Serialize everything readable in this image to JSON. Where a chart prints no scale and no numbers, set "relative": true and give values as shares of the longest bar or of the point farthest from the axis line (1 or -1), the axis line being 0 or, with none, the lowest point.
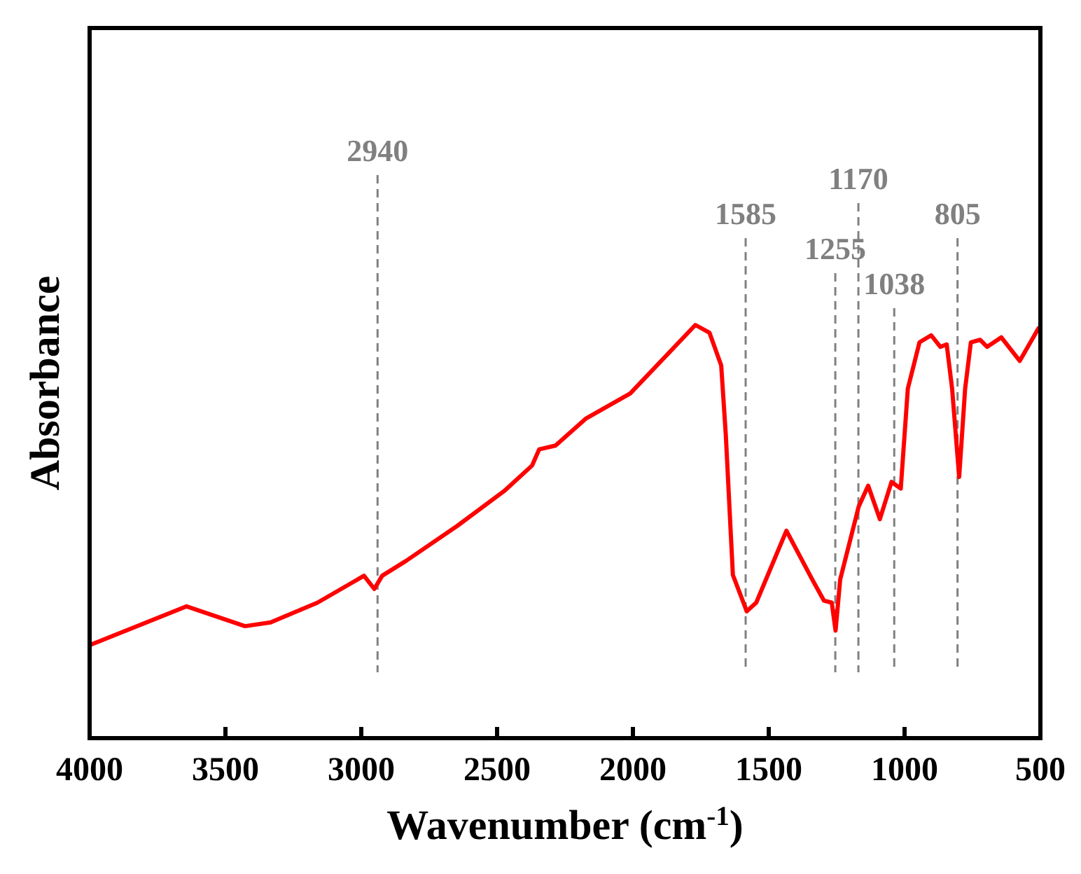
{
  "chart_data": {
    "type": "line",
    "xlabel": "Wavenumber (cm$^{-1}$)",
    "ylabel": "Absorbance",
    "relative": true,
    "xlim": [
      4000,
      500
    ],
    "xticks": [
      4000,
      3500,
      3000,
      2500,
      2000,
      1500,
      1000,
      500
    ],
    "grid": false,
    "marker": "none",
    "line_style": "solid",
    "series": [
      {
        "color": "#ff0000",
        "x": [
          4000,
          3643,
          3428,
          3334,
          3161,
          2990,
          2952,
          2923,
          2835,
          2646,
          2474,
          2371,
          2345,
          2285,
          2174,
          2010,
          1770,
          1718,
          1675,
          1658,
          1632,
          1581,
          1546,
          1435,
          1340,
          1297,
          1268,
          1254,
          1237,
          1169,
          1134,
          1091,
          1048,
          1014,
          988,
          945,
          902,
          868,
          845,
          825,
          799,
          777,
          756,
          722,
          696,
          644,
          576,
          507
        ],
        "values": [
          0.225,
          0.319,
          0.271,
          0.28,
          0.328,
          0.393,
          0.361,
          0.393,
          0.429,
          0.514,
          0.598,
          0.66,
          0.699,
          0.708,
          0.773,
          0.834,
          1.0,
          0.981,
          0.902,
          0.733,
          0.395,
          0.307,
          0.328,
          0.502,
          0.384,
          0.333,
          0.328,
          0.26,
          0.384,
          0.56,
          0.611,
          0.53,
          0.62,
          0.604,
          0.846,
          0.958,
          0.975,
          0.947,
          0.953,
          0.846,
          0.632,
          0.846,
          0.958,
          0.964,
          0.947,
          0.97,
          0.913,
          0.992
        ]
      }
    ],
    "ref_lines": [
      {
        "axis": "x",
        "value": 2940,
        "label": "2940",
        "color": "#808080",
        "line_style": "dashed"
      },
      {
        "axis": "x",
        "value": 1585,
        "label": "1585",
        "color": "#808080",
        "line_style": "dashed"
      },
      {
        "axis": "x",
        "value": 1255,
        "label": "1255",
        "color": "#808080",
        "line_style": "dashed"
      },
      {
        "axis": "x",
        "value": 1170,
        "label": "1170",
        "color": "#808080",
        "line_style": "dashed"
      },
      {
        "axis": "x",
        "value": 1038,
        "label": "1038",
        "color": "#808080",
        "line_style": "dashed"
      },
      {
        "axis": "x",
        "value": 805,
        "label": "805",
        "color": "#808080",
        "line_style": "dashed"
      }
    ]
  }
}
